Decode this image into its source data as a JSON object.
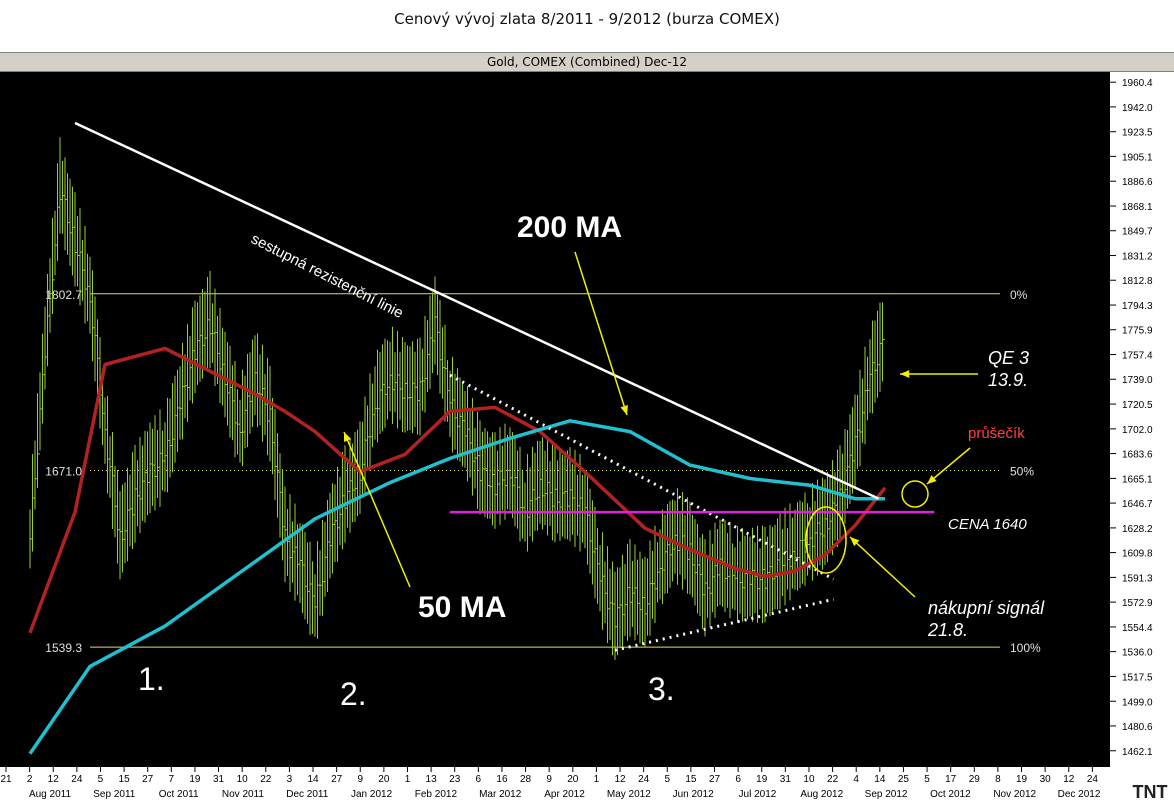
{
  "page_title": "Cenový vývoj zlata 8/2011 - 9/2012 (burza COMEX)",
  "chart_header": "Gold, COMEX (Combined) Dec-12",
  "colors": {
    "background": "#000000",
    "price_bars": "#9acd32",
    "ma50": "#b22222",
    "ma200": "#20c0d0",
    "resistance_line": "#ffffff",
    "fib_lines": "#e0e060",
    "price_line_1640": "#e020e0",
    "annotation_arrows": "#f0f000",
    "intersection_label": "#ff4040"
  },
  "chart_data": {
    "type": "line",
    "title": "Gold, COMEX (Combined) Dec-12",
    "ylim": [
      1450,
      1968
    ],
    "y_ticks": [
      "1960.4",
      "1942.0",
      "1923.5",
      "1905.1",
      "1886.6",
      "1868.1",
      "1849.7",
      "1831.2",
      "1812.8",
      "1794.3",
      "1775.9",
      "1757.4",
      "1739.0",
      "1720.5",
      "1702.0",
      "1683.6",
      "1665.1",
      "1646.7",
      "1628.2",
      "1609.8",
      "1591.3",
      "1572.9",
      "1554.4",
      "1536.0",
      "1517.5",
      "1499.0",
      "1480.6",
      "1462.1"
    ],
    "x_ticks": [
      "21",
      "2",
      "12",
      "24",
      "5",
      "15",
      "27",
      "7",
      "19",
      "31",
      "10",
      "22",
      "3",
      "14",
      "27",
      "9",
      "20",
      "1",
      "13",
      "23",
      "6",
      "16",
      "28",
      "9",
      "20",
      "1",
      "12",
      "24",
      "5",
      "15",
      "27",
      "6",
      "19",
      "31",
      "10",
      "22",
      "4",
      "14",
      "25",
      "5",
      "17",
      "29",
      "8",
      "19",
      "30",
      "12",
      "24"
    ],
    "x_month_labels": [
      "Aug 2011",
      "Sep 2011",
      "Oct 2011",
      "Nov 2011",
      "Dec 2011",
      "Jan 2012",
      "Feb 2012",
      "Mar 2012",
      "Apr 2012",
      "May 2012",
      "Jun 2012",
      "Jul 2012",
      "Aug 2012",
      "Sep 2012",
      "Oct 2012",
      "Nov 2012",
      "Dec 2012"
    ],
    "price_series": {
      "name": "Gold, COMEX (Combined) Dec-12",
      "x": [
        "2011-08-15",
        "2011-08-22",
        "2011-08-29",
        "2011-09-05",
        "2011-09-12",
        "2011-09-19",
        "2011-09-26",
        "2011-10-03",
        "2011-10-10",
        "2011-10-17",
        "2011-10-24",
        "2011-10-31",
        "2011-11-07",
        "2011-11-14",
        "2011-11-21",
        "2011-11-28",
        "2011-12-05",
        "2011-12-12",
        "2011-12-19",
        "2011-12-26",
        "2012-01-02",
        "2012-01-09",
        "2012-01-16",
        "2012-01-23",
        "2012-01-30",
        "2012-02-06",
        "2012-02-13",
        "2012-02-20",
        "2012-02-27",
        "2012-03-05",
        "2012-03-12",
        "2012-03-19",
        "2012-03-26",
        "2012-04-02",
        "2012-04-09",
        "2012-04-16",
        "2012-04-23",
        "2012-04-30",
        "2012-05-07",
        "2012-05-14",
        "2012-05-21",
        "2012-05-28",
        "2012-06-04",
        "2012-06-11",
        "2012-06-18",
        "2012-06-25",
        "2012-07-02",
        "2012-07-09",
        "2012-07-16",
        "2012-07-23",
        "2012-07-30",
        "2012-08-06",
        "2012-08-13",
        "2012-08-20",
        "2012-08-27",
        "2012-09-03",
        "2012-09-10",
        "2012-09-17"
      ],
      "values": [
        1620,
        1760,
        1880,
        1840,
        1800,
        1700,
        1620,
        1650,
        1670,
        1680,
        1720,
        1760,
        1780,
        1740,
        1700,
        1740,
        1710,
        1620,
        1600,
        1570,
        1620,
        1650,
        1670,
        1720,
        1740,
        1730,
        1730,
        1780,
        1720,
        1700,
        1670,
        1660,
        1670,
        1640,
        1660,
        1650,
        1650,
        1640,
        1590,
        1560,
        1580,
        1570,
        1600,
        1620,
        1610,
        1580,
        1600,
        1590,
        1590,
        1590,
        1600,
        1610,
        1620,
        1630,
        1650,
        1690,
        1740,
        1770
      ]
    },
    "series": [
      {
        "name": "50 MA",
        "x": [
          "2011-08-15",
          "2011-09-05",
          "2011-09-19",
          "2011-10-17",
          "2011-11-07",
          "2011-11-28",
          "2011-12-12",
          "2011-12-26",
          "2012-01-16",
          "2012-02-06",
          "2012-02-27",
          "2012-03-19",
          "2012-04-09",
          "2012-04-30",
          "2012-05-28",
          "2012-06-18",
          "2012-07-09",
          "2012-07-23",
          "2012-08-06",
          "2012-08-20",
          "2012-09-03",
          "2012-09-17"
        ],
        "values": [
          1550,
          1640,
          1750,
          1762,
          1745,
          1728,
          1715,
          1700,
          1670,
          1683,
          1715,
          1718,
          1700,
          1670,
          1628,
          1612,
          1598,
          1592,
          1596,
          1608,
          1630,
          1658
        ]
      },
      {
        "name": "200 MA",
        "x": [
          "2011-08-15",
          "2011-09-12",
          "2011-10-17",
          "2011-11-21",
          "2011-12-26",
          "2012-01-30",
          "2012-02-27",
          "2012-03-26",
          "2012-04-23",
          "2012-05-21",
          "2012-06-18",
          "2012-07-16",
          "2012-08-13",
          "2012-09-03",
          "2012-09-17"
        ],
        "values": [
          1460,
          1525,
          1555,
          1595,
          1635,
          1662,
          1680,
          1695,
          1708,
          1700,
          1675,
          1665,
          1660,
          1650,
          1650
        ]
      }
    ],
    "fib_levels": [
      {
        "label": "0%",
        "value_label": "1802.7",
        "value": 1802.7
      },
      {
        "label": "50%",
        "value_label": "1671.0",
        "value": 1671.0
      },
      {
        "label": "100%",
        "value_label": "1539.3",
        "value": 1539.3
      }
    ],
    "price_level_1640": 1640,
    "annotations": {
      "resistance": "sestupná rezistenční linie",
      "ma200": "200 MA",
      "ma50": "50 MA",
      "qe3_line1": "QE 3",
      "qe3_line2": "13.9.",
      "intersection": "průšečík",
      "price": "CENA  1640",
      "buy_line1": "nákupní signál",
      "buy_line2": "21.8.",
      "point1": "1.",
      "point2": "2.",
      "point3": "3."
    },
    "legend_position": "none",
    "grid": false,
    "brand": "TNT"
  }
}
